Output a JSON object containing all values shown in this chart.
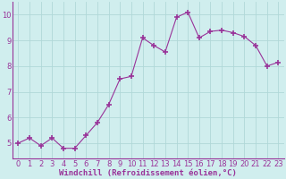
{
  "x": [
    0,
    1,
    2,
    3,
    4,
    5,
    6,
    7,
    8,
    9,
    10,
    11,
    12,
    13,
    14,
    15,
    16,
    17,
    18,
    19,
    20,
    21,
    22,
    23
  ],
  "y": [
    5.0,
    5.2,
    4.9,
    5.2,
    4.8,
    4.8,
    5.3,
    5.8,
    6.5,
    7.5,
    7.6,
    9.1,
    8.8,
    8.55,
    9.9,
    10.1,
    9.1,
    9.35,
    9.4,
    9.3,
    9.15,
    8.8,
    8.0,
    8.15
  ],
  "line_color": "#993399",
  "marker": "+",
  "marker_size": 4,
  "bg_color": "#d0eeee",
  "grid_color": "#b0d8d8",
  "ylim": [
    4.4,
    10.5
  ],
  "yticks": [
    5,
    6,
    7,
    8,
    9,
    10
  ],
  "xlim": [
    -0.5,
    23.5
  ],
  "xticks": [
    0,
    1,
    2,
    3,
    4,
    5,
    6,
    7,
    8,
    9,
    10,
    11,
    12,
    13,
    14,
    15,
    16,
    17,
    18,
    19,
    20,
    21,
    22,
    23
  ],
  "xlabel": "Windchill (Refroidissement éolien,°C)",
  "xlabel_fontsize": 6.5,
  "tick_fontsize": 6.0,
  "xlabel_color": "#993399",
  "tick_color": "#993399",
  "spine_color": "#993399"
}
